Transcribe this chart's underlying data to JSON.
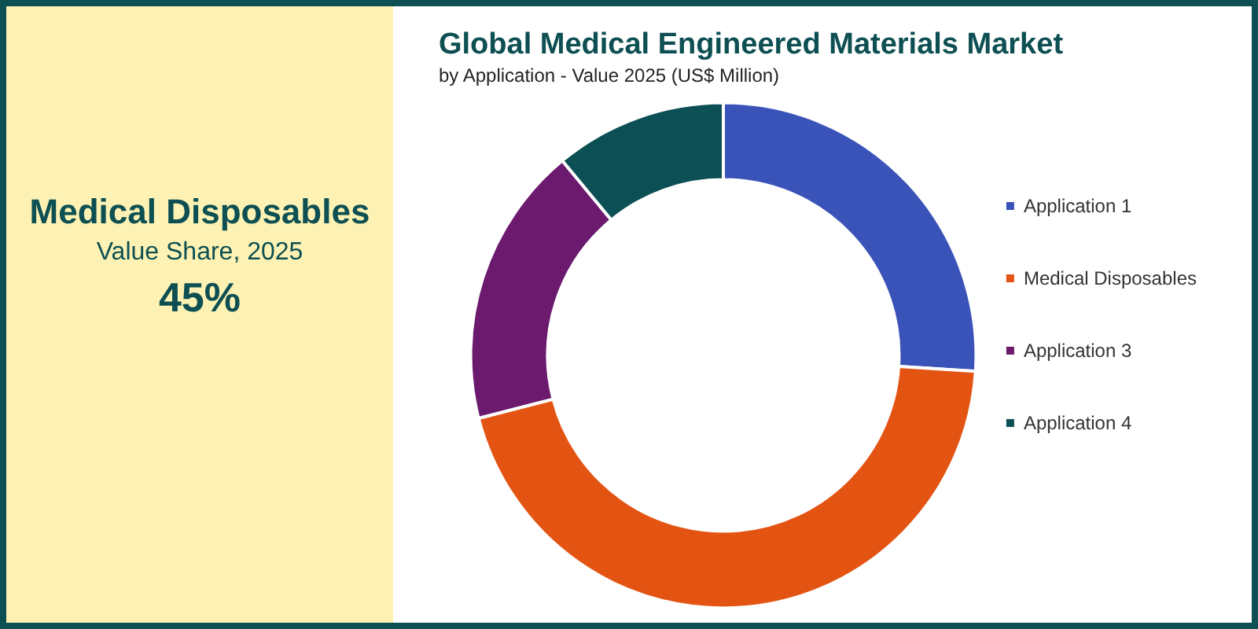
{
  "chart_data": {
    "type": "donut",
    "title": "Global Medical Engineered Materials Market",
    "subtitle": "by Application - Value 2025 (US$ Million)",
    "categories": [
      "Application 1",
      "Medical Disposables",
      "Application 3",
      "Application 4"
    ],
    "values": [
      26,
      45,
      18,
      11
    ],
    "colors": [
      "#3a53b8",
      "#e35413",
      "#6c1a6e",
      "#0c4f55"
    ],
    "legend": "right",
    "annotations": [
      "Medical Disposables",
      "Value Share, 2025",
      "45%"
    ]
  }
}
